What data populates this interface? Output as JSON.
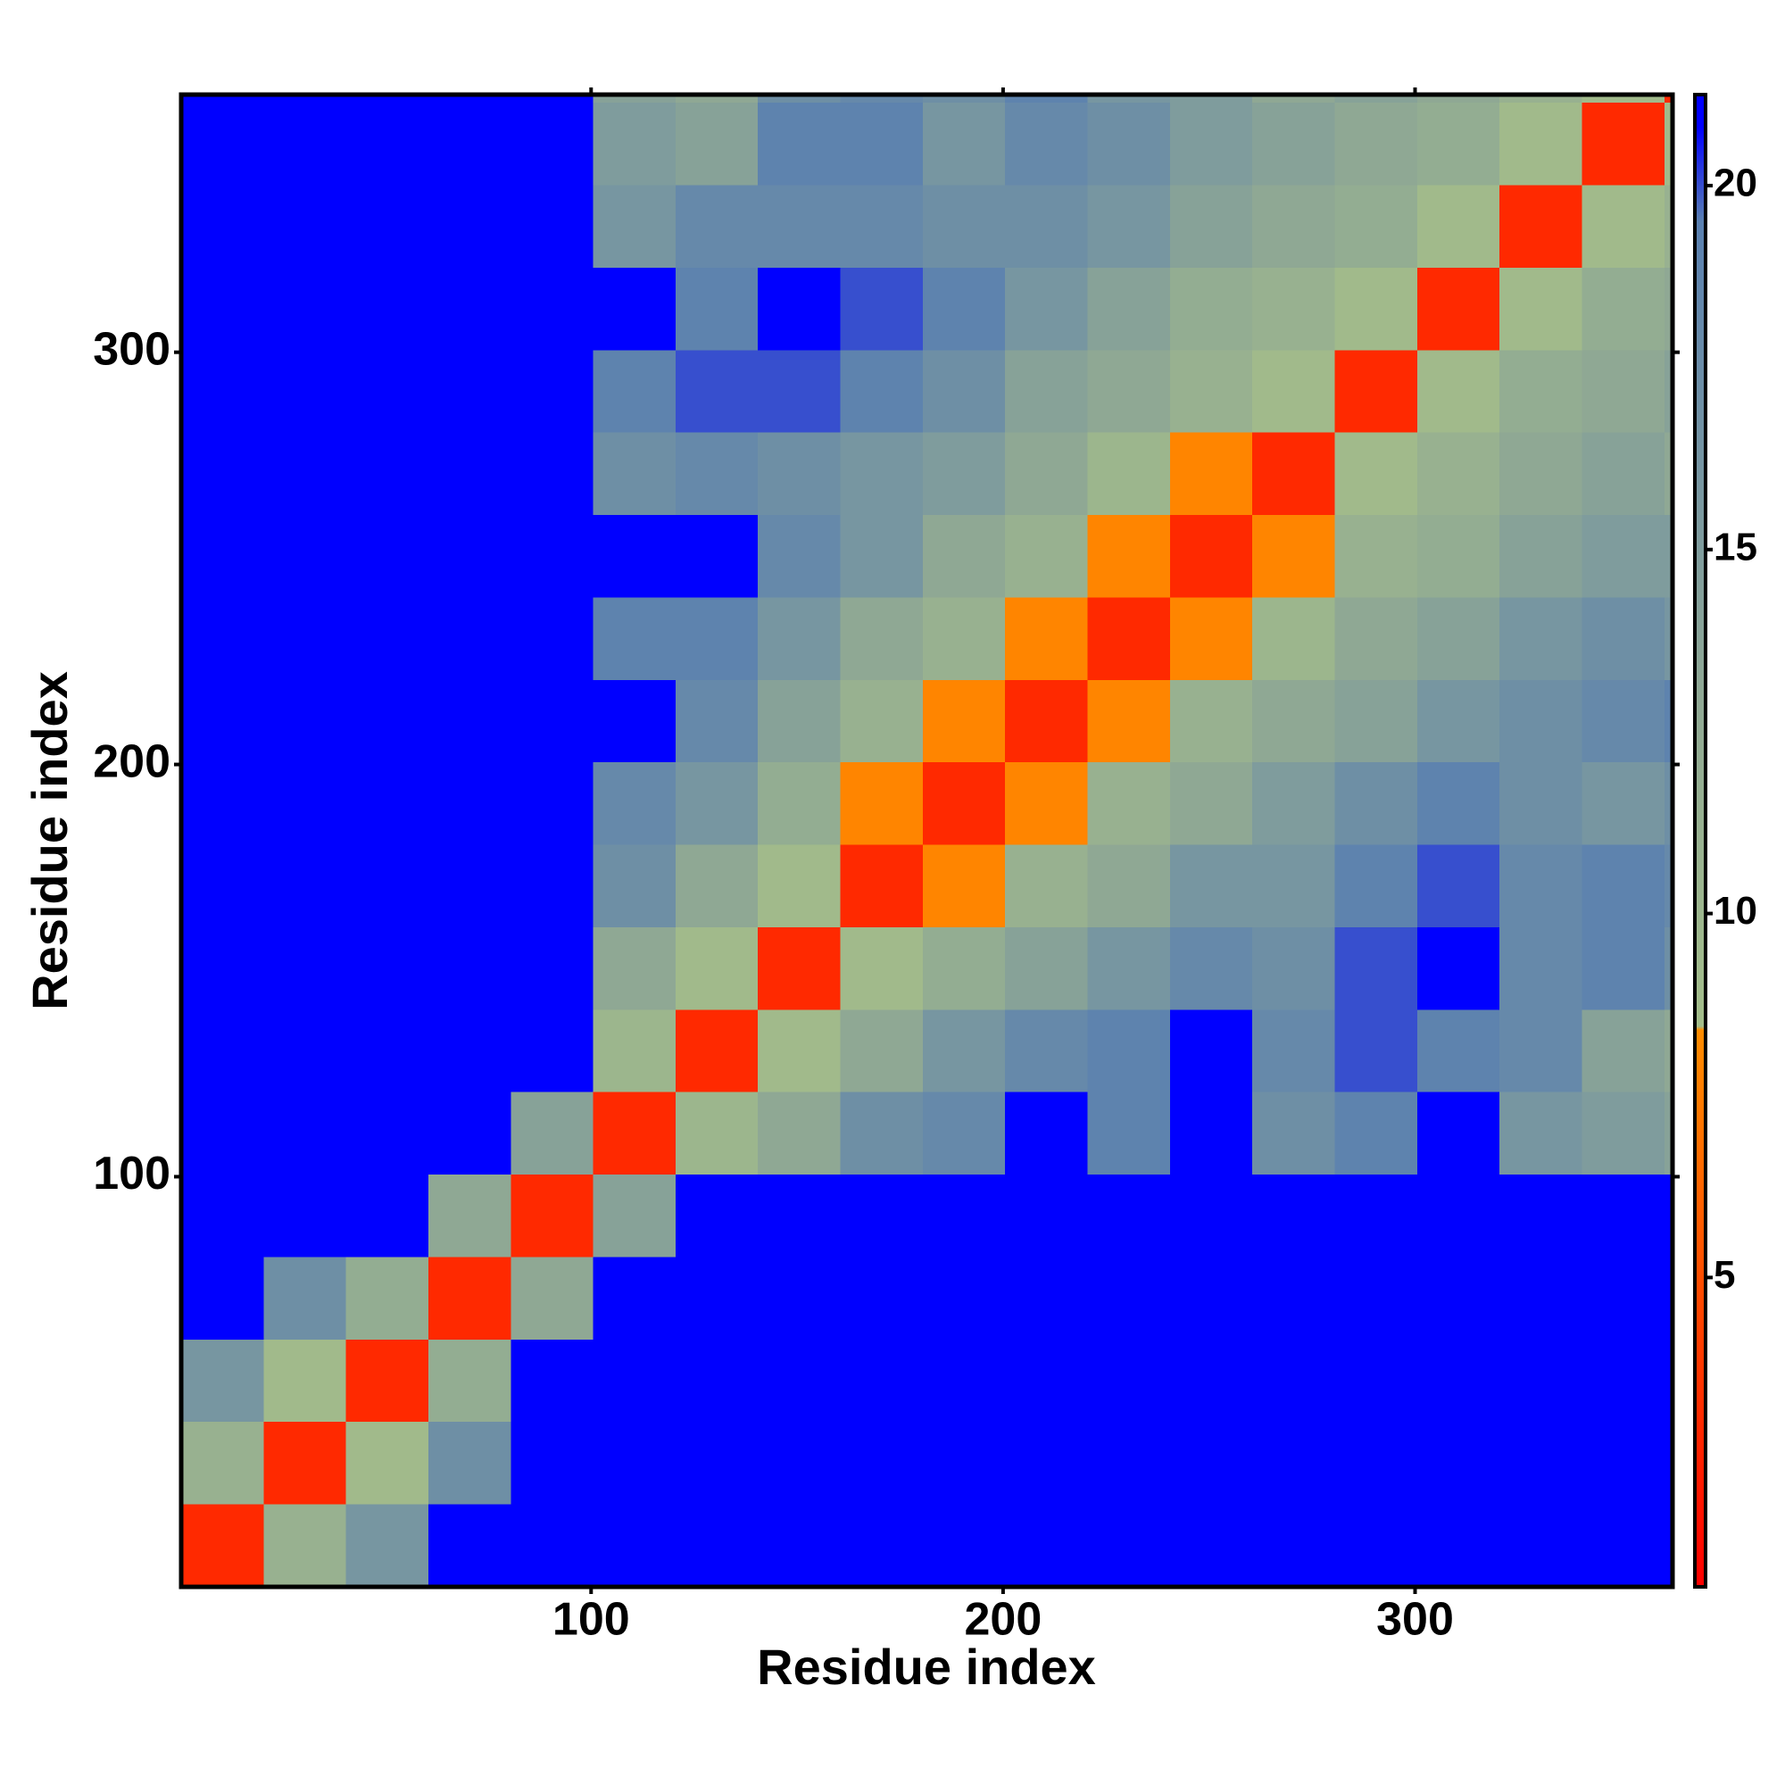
{
  "chart_data": {
    "type": "heatmap",
    "xlabel": "Residue index",
    "ylabel": "Residue index",
    "xbins": [
      0.5,
      20.5,
      40.5,
      60.5,
      80.5,
      100.5,
      120.5,
      140.5,
      160.5,
      180.5,
      200.5,
      220.5,
      240.5,
      260.5,
      280.5,
      300.5,
      320.5,
      340.5,
      360.5,
      362.5
    ],
    "ybins": [
      0.5,
      20.5,
      40.5,
      60.5,
      80.5,
      100.5,
      120.5,
      140.5,
      160.5,
      180.5,
      200.5,
      220.5,
      240.5,
      260.5,
      280.5,
      300.5,
      320.5,
      340.5,
      360.5,
      362.5
    ],
    "z": [
      [
        3,
        11,
        16,
        21,
        21,
        21,
        21,
        21,
        21,
        21,
        21,
        21,
        21,
        21,
        21,
        21,
        21,
        21,
        21
      ],
      [
        11,
        3,
        9,
        17,
        21,
        21,
        21,
        21,
        21,
        21,
        21,
        21,
        21,
        21,
        21,
        21,
        21,
        21,
        21
      ],
      [
        16,
        9,
        3,
        12,
        21,
        21,
        21,
        21,
        21,
        21,
        21,
        21,
        21,
        21,
        21,
        21,
        21,
        21,
        21
      ],
      [
        21,
        17,
        12,
        3,
        13,
        21,
        21,
        21,
        21,
        21,
        21,
        21,
        21,
        21,
        21,
        21,
        21,
        21,
        21
      ],
      [
        21,
        21,
        21,
        13,
        3,
        14,
        21,
        21,
        21,
        21,
        21,
        21,
        21,
        21,
        21,
        21,
        21,
        21,
        21
      ],
      [
        21,
        21,
        21,
        21,
        14,
        3,
        10,
        13,
        17,
        18,
        21,
        19,
        21,
        17,
        19,
        21,
        16,
        15,
        14
      ],
      [
        21,
        21,
        21,
        21,
        21,
        10,
        3,
        9,
        13,
        16,
        18,
        19,
        21,
        18,
        20,
        19,
        18,
        14,
        13
      ],
      [
        21,
        21,
        21,
        21,
        21,
        13,
        9,
        3,
        9,
        12,
        14,
        16,
        18,
        17,
        20,
        21,
        18,
        19,
        17
      ],
      [
        21,
        21,
        21,
        21,
        21,
        17,
        13,
        9,
        3,
        8,
        11,
        13,
        16,
        16,
        19,
        20,
        18,
        19,
        18
      ],
      [
        21,
        21,
        21,
        21,
        21,
        18,
        16,
        12,
        8,
        3,
        8,
        11,
        13,
        15,
        17,
        19,
        17,
        16,
        17
      ],
      [
        21,
        21,
        21,
        21,
        21,
        21,
        18,
        14,
        11,
        8,
        3,
        8,
        11,
        13,
        14,
        16,
        17,
        18,
        19
      ],
      [
        21,
        21,
        21,
        21,
        21,
        19,
        19,
        16,
        13,
        11,
        8,
        3,
        8,
        10,
        13,
        14,
        16,
        17,
        16
      ],
      [
        21,
        21,
        21,
        21,
        21,
        21,
        21,
        18,
        16,
        13,
        11,
        8,
        3,
        8,
        11,
        12,
        14,
        15,
        15
      ],
      [
        21,
        21,
        21,
        21,
        21,
        17,
        18,
        17,
        16,
        15,
        13,
        10,
        8,
        3,
        9,
        11,
        13,
        14,
        13
      ],
      [
        21,
        21,
        21,
        21,
        21,
        19,
        20,
        20,
        19,
        17,
        14,
        13,
        11,
        9,
        3,
        9,
        12,
        13,
        14
      ],
      [
        21,
        21,
        21,
        21,
        21,
        21,
        19,
        21,
        20,
        19,
        16,
        14,
        12,
        11,
        9,
        3,
        9,
        12,
        13
      ],
      [
        21,
        21,
        21,
        21,
        21,
        16,
        18,
        18,
        18,
        17,
        17,
        16,
        14,
        13,
        12,
        9,
        3,
        9,
        11
      ],
      [
        21,
        21,
        21,
        21,
        21,
        15,
        14,
        19,
        19,
        16,
        18,
        17,
        15,
        14,
        13,
        12,
        9,
        3,
        9
      ],
      [
        21,
        21,
        21,
        21,
        21,
        14,
        13,
        17,
        18,
        17,
        19,
        16,
        15,
        13,
        14,
        13,
        11,
        9,
        3
      ]
    ],
    "xlim": [
      0.5,
      362.5
    ],
    "ylim": [
      0.5,
      362.5
    ],
    "xticks": [
      100,
      200,
      300
    ],
    "yticks": [
      100,
      200,
      300
    ],
    "zlim": [
      0.75,
      21.25
    ],
    "zticks": [
      5,
      10,
      15,
      20
    ],
    "colorscale": [
      [
        0.75,
        "#ff0000"
      ],
      [
        8.4,
        "#ff8c00"
      ],
      [
        8.45,
        "#a3bd8a"
      ],
      [
        13,
        "#8fa894"
      ],
      [
        19.5,
        "#5a80b0"
      ],
      [
        20.8,
        "#0000ff"
      ],
      [
        21.25,
        "#0000ff"
      ]
    ]
  }
}
